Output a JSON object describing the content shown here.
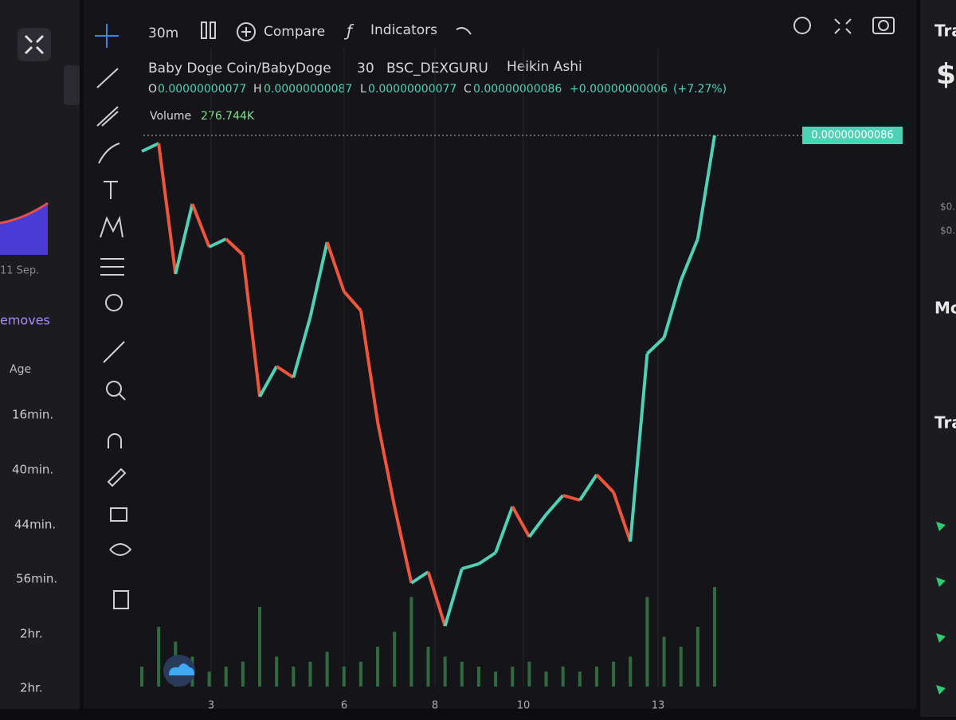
{
  "left_panel": {
    "date_label": "11 Sep.",
    "tab": "emoves",
    "column": "Age",
    "ages": [
      "16min.",
      "40min.",
      "44min.",
      "56min.",
      "2hr.",
      "2hr."
    ]
  },
  "right_panel": {
    "title": "Tra",
    "dollar": "$",
    "price_a": "$0.",
    "price_b": "$0.",
    "section_a": "Mo",
    "section_b": "Tra"
  },
  "toolbar": {
    "interval": "30m",
    "compare": "Compare",
    "indicators": "Indicators"
  },
  "legend": {
    "symbol": "Baby Doge Coin/BabyDoge",
    "interval": "30",
    "exchange": "BSC_DEXGURU",
    "style": "Heikin Ashi",
    "o_key": "O",
    "open": "0.00000000077",
    "h_key": "H",
    "high": "0.00000000087",
    "l_key": "L",
    "low": "0.00000000077",
    "c_key": "C",
    "close": "0.00000000086",
    "change": "+0.00000000006",
    "change_pct": "(+7.27%)",
    "volume_key": "Volume",
    "volume": "276.744K"
  },
  "chart": {
    "type": "candles",
    "last_price_label": "0.00000000086",
    "x_labels": [
      "3",
      "6",
      "8",
      "10",
      "13"
    ],
    "values": [
      8.5e-10,
      8.55e-10,
      7.73e-10,
      8.17e-10,
      7.9e-10,
      7.95e-10,
      7.85e-10,
      6.96e-10,
      7.15e-10,
      7.08e-10,
      7.46e-10,
      7.93e-10,
      7.62e-10,
      7.5e-10,
      6.8e-10,
      6.27e-10,
      5.79e-10,
      5.86e-10,
      5.52e-10,
      5.88e-10,
      5.91e-10,
      5.98e-10,
      6.27e-10,
      6.08e-10,
      6.22e-10,
      6.34e-10,
      6.31e-10,
      6.47e-10,
      6.36e-10,
      6.05e-10,
      7.23e-10,
      7.33e-10,
      7.69e-10,
      7.95e-10,
      8.6e-10
    ],
    "ylim": [
      5.4e-10,
      8.7e-10
    ],
    "up_color": "#4fd1b5",
    "down_color": "#f0553a",
    "volumes": [
      20,
      60,
      45,
      30,
      15,
      20,
      25,
      80,
      30,
      20,
      25,
      35,
      20,
      25,
      40,
      55,
      90,
      40,
      30,
      25,
      20,
      15,
      20,
      25,
      15,
      20,
      15,
      20,
      25,
      30,
      90,
      50,
      40,
      60,
      100
    ],
    "volume_lim": [
      0,
      160
    ],
    "volume_color": "#2f6b3f"
  }
}
